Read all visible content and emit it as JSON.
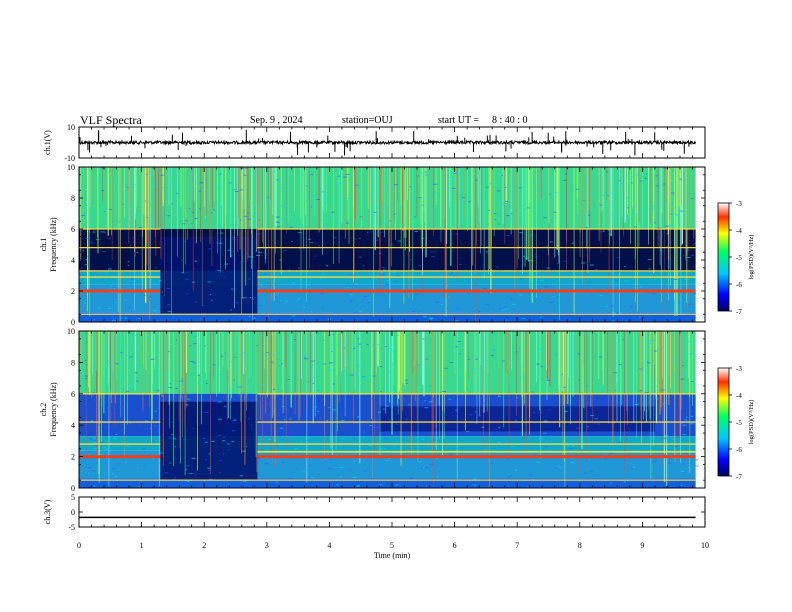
{
  "header": {
    "title": "VLF Spectra",
    "date": "Sep. 9 , 2024",
    "station": "station=OUJ",
    "start_label": "start UT =",
    "start_time": "8 : 40 : 0"
  },
  "chart_data": [
    {
      "type": "line",
      "ylabel": "ch.1(V)",
      "ylim": [
        -10,
        10
      ],
      "yticks": [
        "10",
        "-10"
      ],
      "xlim": [
        0,
        10
      ],
      "baseline": 0
    },
    {
      "type": "heatmap",
      "ylabel": "Frequency (kHz)",
      "channel_label": "ch.1",
      "ylim": [
        0,
        10
      ],
      "yticks": [
        "0",
        "2",
        "4",
        "6",
        "8",
        "10"
      ],
      "xlim": [
        0,
        10
      ],
      "bands_khz": [
        0.5,
        2.0,
        2.9,
        3.3,
        4.8,
        6.0
      ],
      "colorbar": {
        "label": "log(PSD)(V²/Hz)",
        "range": [
          -7,
          -3
        ],
        "ticks": [
          "-3",
          "-4",
          "-5",
          "-6",
          "-7"
        ]
      }
    },
    {
      "type": "heatmap",
      "ylabel": "Frequency (kHz)",
      "channel_label": "ch.2",
      "ylim": [
        0,
        10
      ],
      "yticks": [
        "0",
        "2",
        "4",
        "6",
        "8",
        "10"
      ],
      "xlim": [
        0,
        10
      ],
      "bands_khz": [
        0.5,
        2.0,
        2.8,
        4.2,
        6.0
      ],
      "colorbar": {
        "label": "log(PSD)(V²/Hz)",
        "range": [
          -7,
          -3
        ],
        "ticks": [
          "-3",
          "-4",
          "-5",
          "-6",
          "-7"
        ]
      }
    },
    {
      "type": "line",
      "ylabel": "ch.3(V)",
      "ylim": [
        -5,
        5
      ],
      "yticks": [
        "5",
        "0",
        "-5"
      ],
      "xlim": [
        0,
        10
      ],
      "constant_value": -1.8
    }
  ],
  "xaxis": {
    "label": "Time (min)",
    "ticks": [
      "0",
      "1",
      "2",
      "3",
      "4",
      "5",
      "6",
      "7",
      "8",
      "9",
      "10"
    ],
    "data_end_min": 9.85
  }
}
